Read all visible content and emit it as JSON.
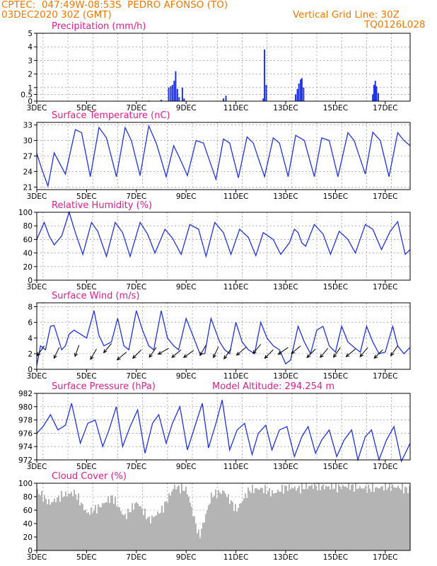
{
  "header": {
    "line1_left": "CPTEC:  047:49W-08:53S  PEDRO AFONSO (TO)",
    "line2_left": "03DEC2020 30Z (GMT)",
    "line1_right": "Vertical Grid Line: 30Z",
    "line2_right": "TQ0126L028"
  },
  "x_ticks": [
    "3DEC",
    "5DEC",
    "7DEC",
    "9DEC",
    "11DEC",
    "13DEC",
    "15DEC",
    "17DEC"
  ],
  "chart_data": [
    {
      "type": "bar",
      "title": "Precipitation (mm/h)",
      "ylim": [
        0,
        5
      ],
      "yticks": [
        0,
        0.5,
        1,
        2,
        3,
        4,
        5
      ],
      "x_range_days": [
        3,
        18
      ],
      "bars": [
        {
          "x": 7.5,
          "y": 0.05
        },
        {
          "x": 8.0,
          "y": 0.1
        },
        {
          "x": 8.3,
          "y": 1.0
        },
        {
          "x": 8.38,
          "y": 1.1
        },
        {
          "x": 8.45,
          "y": 1.2
        },
        {
          "x": 8.52,
          "y": 1.5
        },
        {
          "x": 8.58,
          "y": 2.2
        },
        {
          "x": 8.65,
          "y": 0.9
        },
        {
          "x": 8.72,
          "y": 0.3
        },
        {
          "x": 8.85,
          "y": 1.0
        },
        {
          "x": 8.92,
          "y": 0.2
        },
        {
          "x": 10.5,
          "y": 0.2
        },
        {
          "x": 10.6,
          "y": 0.4
        },
        {
          "x": 12.1,
          "y": 0.2
        },
        {
          "x": 12.15,
          "y": 3.8
        },
        {
          "x": 12.22,
          "y": 1.2
        },
        {
          "x": 13.4,
          "y": 0.5
        },
        {
          "x": 13.47,
          "y": 0.9
        },
        {
          "x": 13.53,
          "y": 1.3
        },
        {
          "x": 13.6,
          "y": 1.6
        },
        {
          "x": 13.65,
          "y": 1.7
        },
        {
          "x": 13.72,
          "y": 1.0
        },
        {
          "x": 16.5,
          "y": 0.5
        },
        {
          "x": 16.55,
          "y": 1.2
        },
        {
          "x": 16.6,
          "y": 1.5
        },
        {
          "x": 16.65,
          "y": 1.1
        },
        {
          "x": 16.72,
          "y": 0.6
        }
      ]
    },
    {
      "type": "line",
      "title": "Surface Temperature (nC)",
      "ylim": [
        20.5,
        33.5
      ],
      "yticks": [
        21,
        24,
        27,
        30,
        33
      ],
      "x": [
        3.0,
        3.2,
        3.45,
        3.7,
        4.15,
        4.55,
        4.8,
        5.15,
        5.5,
        5.8,
        6.2,
        6.55,
        6.8,
        7.15,
        7.5,
        7.8,
        8.2,
        8.5,
        8.75,
        9.05,
        9.4,
        9.7,
        10.2,
        10.5,
        10.75,
        11.1,
        11.45,
        11.7,
        12.15,
        12.5,
        12.75,
        13.1,
        13.4,
        13.75,
        14.15,
        14.45,
        14.75,
        15.1,
        15.5,
        15.75,
        16.2,
        16.5,
        16.8,
        17.15,
        17.5,
        17.75,
        18.0
      ],
      "y": [
        27.5,
        24.5,
        21.2,
        27.6,
        23.5,
        32.1,
        31.5,
        23.0,
        32.5,
        30.5,
        23.0,
        32.5,
        30.0,
        23.2,
        32.8,
        29.5,
        23.0,
        29.0,
        26.5,
        23.2,
        30.0,
        29.5,
        22.5,
        30.3,
        29.5,
        22.8,
        30.7,
        29.5,
        23.0,
        30.5,
        29.5,
        23.0,
        31.0,
        30.0,
        23.0,
        30.5,
        30.0,
        23.0,
        31.5,
        30.0,
        23.5,
        31.6,
        30.0,
        23.0,
        31.5,
        30.0,
        29.0
      ]
    },
    {
      "type": "line",
      "title": "Relative Humidity (%)",
      "ylim": [
        0,
        100
      ],
      "yticks": [
        0,
        20,
        40,
        60,
        80,
        100
      ],
      "x": [
        3.0,
        3.3,
        3.5,
        3.7,
        4.0,
        4.3,
        4.55,
        4.85,
        5.2,
        5.45,
        5.8,
        6.15,
        6.45,
        6.75,
        7.15,
        7.45,
        7.75,
        8.15,
        8.45,
        8.8,
        9.15,
        9.5,
        9.8,
        10.15,
        10.5,
        10.8,
        11.15,
        11.5,
        11.8,
        12.1,
        12.5,
        12.8,
        13.15,
        13.35,
        13.5,
        13.65,
        13.8,
        14.15,
        14.5,
        14.8,
        15.15,
        15.5,
        15.8,
        16.2,
        16.5,
        16.85,
        17.2,
        17.5,
        17.8,
        18.0
      ],
      "y": [
        60,
        85,
        65,
        52,
        65,
        100,
        70,
        38,
        85,
        72,
        35,
        85,
        70,
        35,
        85,
        68,
        40,
        75,
        62,
        38,
        82,
        75,
        35,
        85,
        70,
        38,
        75,
        63,
        36,
        70,
        60,
        38,
        55,
        75,
        70,
        55,
        50,
        82,
        68,
        38,
        72,
        60,
        40,
        82,
        75,
        45,
        72,
        86,
        38,
        45
      ]
    },
    {
      "type": "line",
      "title": "Surface Wind (m/s)",
      "ylim": [
        0,
        8.5
      ],
      "yticks": [
        0,
        2,
        4,
        6,
        8
      ],
      "x": [
        3.0,
        3.15,
        3.35,
        3.55,
        3.7,
        4.0,
        4.15,
        4.3,
        4.5,
        4.75,
        5.0,
        5.3,
        5.5,
        5.7,
        6.0,
        6.25,
        6.5,
        6.7,
        7.0,
        7.25,
        7.5,
        7.7,
        8.0,
        8.25,
        8.5,
        8.7,
        9.0,
        9.25,
        9.55,
        9.75,
        10.0,
        10.35,
        10.55,
        10.75,
        11.0,
        11.25,
        11.5,
        11.75,
        12.0,
        12.25,
        12.5,
        12.75,
        13.0,
        13.2,
        13.5,
        13.75,
        14.0,
        14.25,
        14.5,
        14.75,
        15.0,
        15.25,
        15.5,
        15.75,
        16.0,
        16.25,
        16.5,
        16.75,
        17.0,
        17.3,
        17.5,
        17.75,
        18.0
      ],
      "y": [
        0.5,
        3.0,
        2.5,
        5.5,
        5.6,
        2.5,
        3.0,
        4.5,
        5.0,
        4.5,
        4.0,
        7.5,
        4.3,
        3.0,
        3.5,
        6.5,
        3.0,
        2.5,
        7.5,
        5.0,
        3.0,
        2.5,
        7.5,
        4.0,
        3.0,
        2.5,
        6.5,
        4.5,
        2.0,
        2.0,
        6.5,
        3.5,
        2.5,
        2.0,
        6.0,
        3.5,
        2.5,
        2.0,
        6.0,
        4.0,
        3.0,
        2.5,
        0.7,
        1.2,
        5.5,
        3.5,
        2.0,
        5.0,
        5.5,
        3.0,
        2.2,
        5.5,
        3.5,
        2.8,
        2.2,
        5.5,
        3.5,
        2.0,
        2.2,
        5.5,
        3.0,
        2.0,
        2.8
      ],
      "barbs_x_days": [
        3.3,
        3.9,
        4.7,
        5.4,
        6.0,
        6.6,
        7.2,
        7.8,
        8.3,
        8.8,
        9.3,
        9.8,
        10.3,
        10.8,
        11.4,
        12.0,
        12.5,
        13.1,
        13.6,
        14.2,
        14.7,
        15.2,
        15.8,
        16.3,
        16.9,
        17.5
      ],
      "barbs_y": [
        3.0,
        2.8,
        3.1,
        2.6,
        3.3,
        2.2,
        2.5,
        2.8,
        2.7,
        2.5,
        2.4,
        3.1,
        2.9,
        2.6,
        2.8,
        3.2,
        2.5,
        2.8,
        3.0,
        2.6,
        2.7,
        2.8,
        2.6,
        2.8,
        2.5,
        3.0
      ],
      "barbs_dir_deg": [
        215,
        205,
        200,
        210,
        220,
        230,
        225,
        215,
        240,
        230,
        235,
        210,
        205,
        215,
        230,
        220,
        225,
        235,
        230,
        225,
        220,
        215,
        230,
        220,
        225,
        215
      ]
    },
    {
      "type": "line",
      "title": "Surface Pressure (hPa)",
      "annotation": "Model Altitude: 294.254 m",
      "ylim": [
        972,
        982
      ],
      "yticks": [
        972,
        974,
        976,
        978,
        980,
        982
      ],
      "x": [
        3.0,
        3.25,
        3.55,
        3.85,
        4.15,
        4.4,
        4.75,
        5.05,
        5.35,
        5.65,
        5.9,
        6.2,
        6.45,
        6.75,
        7.05,
        7.35,
        7.65,
        7.9,
        8.2,
        8.45,
        8.75,
        9.05,
        9.35,
        9.65,
        9.9,
        10.2,
        10.45,
        10.75,
        11.05,
        11.35,
        11.65,
        11.9,
        12.2,
        12.45,
        12.75,
        13.05,
        13.35,
        13.65,
        13.9,
        14.2,
        14.45,
        14.75,
        15.05,
        15.35,
        15.65,
        15.9,
        16.2,
        16.45,
        16.75,
        17.05,
        17.35,
        17.65,
        18.0
      ],
      "y": [
        976.0,
        977.0,
        978.8,
        976.5,
        977.2,
        980.5,
        974.5,
        977.5,
        978.0,
        974.0,
        976.5,
        980.0,
        974.0,
        977.0,
        979.5,
        973.0,
        977.5,
        978.8,
        974.5,
        977.5,
        980.0,
        973.5,
        977.0,
        980.5,
        973.8,
        977.5,
        981.0,
        973.5,
        976.5,
        977.5,
        972.8,
        976.0,
        977.2,
        973.5,
        976.5,
        977.0,
        972.5,
        975.5,
        977.0,
        973.0,
        975.0,
        976.5,
        972.5,
        975.0,
        976.5,
        972.0,
        975.5,
        976.5,
        972.0,
        975.0,
        977.0,
        971.8,
        974.5
      ]
    },
    {
      "type": "bar",
      "title": "Cloud Cover (%)",
      "ylim": [
        0,
        100
      ],
      "yticks": [
        0,
        20,
        40,
        60,
        80,
        100
      ],
      "x_range_days": [
        3,
        18
      ],
      "bar_color": "#b4b4b4",
      "series_x_days": [
        3.0,
        3.5,
        4.0,
        4.5,
        5.0,
        5.5,
        6.0,
        6.5,
        7.0,
        7.5,
        8.0,
        8.5,
        9.0,
        9.5,
        10.0,
        10.5,
        11.0,
        11.5,
        12.0,
        12.5,
        13.0,
        13.5,
        14.0,
        14.5,
        15.0,
        15.5,
        16.0,
        16.5,
        17.0,
        17.5,
        18.0
      ],
      "series_y": [
        88,
        70,
        82,
        86,
        55,
        65,
        80,
        50,
        72,
        45,
        60,
        95,
        90,
        20,
        82,
        88,
        60,
        90,
        92,
        85,
        94,
        92,
        96,
        95,
        94,
        96,
        93,
        92,
        95,
        94,
        90
      ]
    }
  ],
  "colors": {
    "header": "#f07800",
    "panel_title": "#e01c8c",
    "series_line": "#1f33e0",
    "cloud_bars": "#b4b4b4",
    "grid": "#808080"
  }
}
